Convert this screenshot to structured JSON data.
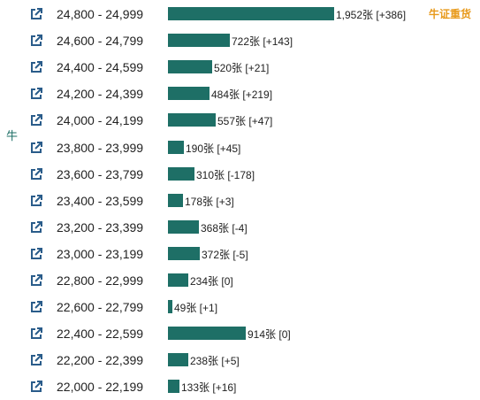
{
  "side_label": "牛",
  "heavy_label": "牛证重货",
  "colors": {
    "bar": "#1e6f66",
    "icon": "#2a5c8a",
    "accent": "#e89a1c"
  },
  "chart_data": {
    "type": "bar",
    "orientation": "horizontal",
    "unit": "张",
    "categories": [
      "24,800 - 24,999",
      "24,600 - 24,799",
      "24,400 - 24,599",
      "24,200 - 24,399",
      "24,000 - 24,199",
      "23,800 - 23,999",
      "23,600 - 23,799",
      "23,400 - 23,599",
      "23,200 - 23,399",
      "23,000 - 23,199",
      "22,800 - 22,999",
      "22,600 - 22,799",
      "22,400 - 22,599",
      "22,200 - 22,399",
      "22,000 - 22,199"
    ],
    "values": [
      1952,
      722,
      520,
      484,
      557,
      190,
      310,
      178,
      368,
      372,
      234,
      49,
      914,
      238,
      133
    ],
    "changes": [
      "+386",
      "+143",
      "+21",
      "+219",
      "+47",
      "+45",
      "-178",
      "+3",
      "-4",
      "-5",
      "0",
      "+1",
      "0",
      "+5",
      "+16"
    ],
    "labels": [
      "1,952张 [+386]",
      "722张 [+143]",
      "520张 [+21]",
      "484张 [+219]",
      "557张 [+47]",
      "190张 [+45]",
      "310张 [-178]",
      "178张 [+3]",
      "368张 [-4]",
      "372张 [-5]",
      "234张 [0]",
      "49张 [+1]",
      "914张 [0]",
      "238张 [+5]",
      "133张 [+16]"
    ],
    "xlim": [
      0,
      1952
    ]
  }
}
